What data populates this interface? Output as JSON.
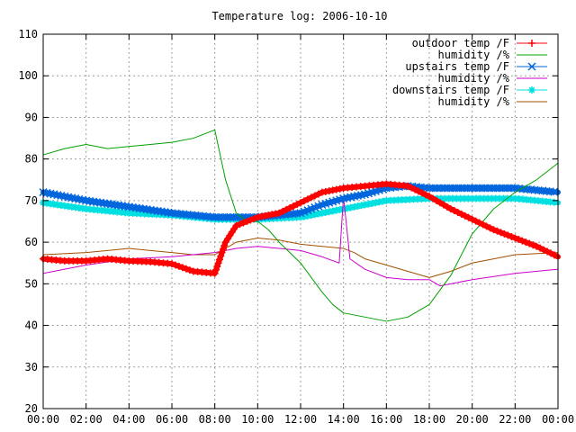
{
  "chart_data": {
    "type": "line",
    "title": "Temperature log: 2006-10-10",
    "xlabel": "",
    "ylabel": "",
    "xlim": [
      0,
      24
    ],
    "ylim": [
      20,
      110
    ],
    "x_ticks": [
      "00:00",
      "02:00",
      "04:00",
      "06:00",
      "08:00",
      "10:00",
      "12:00",
      "14:00",
      "16:00",
      "18:00",
      "20:00",
      "22:00",
      "00:00"
    ],
    "y_ticks": [
      "20",
      "30",
      "40",
      "50",
      "60",
      "70",
      "80",
      "90",
      "100",
      "110"
    ],
    "grid": true,
    "legend_position": "top-right",
    "series": [
      {
        "name": "outdoor temp /F",
        "color": "#ff0000",
        "marker": "plus",
        "x": [
          0,
          1,
          2,
          3,
          4,
          5,
          6,
          7,
          8,
          8.5,
          9,
          10,
          11,
          12,
          13,
          14,
          15,
          16,
          17,
          18,
          19,
          20,
          21,
          22,
          23,
          24
        ],
        "y": [
          56,
          55.5,
          55.5,
          56,
          55.5,
          55.3,
          54.8,
          53,
          52.5,
          60,
          64,
          66,
          67,
          69.5,
          72,
          73,
          73.5,
          74,
          73.5,
          71,
          68,
          65.5,
          63,
          61,
          59,
          56.5
        ]
      },
      {
        "name": "humidity /%",
        "color": "#00a000",
        "marker": "none",
        "x": [
          0,
          1,
          2,
          3,
          4,
          5,
          6,
          7,
          7.5,
          8,
          8.5,
          9,
          9.5,
          10,
          10.5,
          11,
          12,
          13,
          13.5,
          14,
          15,
          16,
          17,
          18,
          19,
          20,
          21,
          22,
          23,
          24
        ],
        "y": [
          81,
          82.5,
          83.5,
          82.5,
          83,
          83.5,
          84,
          85,
          86,
          87,
          75,
          67,
          65,
          65,
          63,
          60,
          55,
          48,
          45,
          43,
          42,
          41,
          42,
          45,
          52,
          62,
          68,
          72,
          75,
          79
        ]
      },
      {
        "name": "upstairs temp /F",
        "color": "#0066dd",
        "marker": "x",
        "x": [
          0,
          2,
          4,
          6,
          8,
          10,
          12,
          13,
          14,
          15,
          16,
          17,
          18,
          20,
          22,
          24
        ],
        "y": [
          72,
          70,
          68.5,
          67,
          66,
          66,
          67,
          69,
          70.5,
          71.5,
          73,
          73.5,
          73,
          73,
          73,
          72
        ]
      },
      {
        "name": "humidity /%",
        "color": "#cc00cc",
        "marker": "none",
        "x": [
          0,
          2,
          4,
          6,
          8,
          9,
          10,
          11,
          12,
          13,
          13.8,
          14,
          14.3,
          15,
          16,
          17,
          18,
          18.5,
          19,
          20,
          22,
          24
        ],
        "y": [
          52.5,
          54.5,
          56,
          56.5,
          57.5,
          58.5,
          59,
          58.5,
          58,
          56.5,
          55,
          71,
          56,
          53.5,
          51.5,
          51,
          51,
          49.5,
          50,
          51,
          52.5,
          53.5
        ]
      },
      {
        "name": "downstairs temp /F",
        "color": "#00e0e0",
        "marker": "star",
        "x": [
          0,
          2,
          4,
          6,
          8,
          10,
          12,
          14,
          16,
          18,
          20,
          22,
          24
        ],
        "y": [
          69.5,
          68,
          67,
          66.5,
          65.5,
          65.5,
          66,
          68,
          70,
          70.5,
          70.5,
          70.5,
          69.5
        ]
      },
      {
        "name": "humidity /%",
        "color": "#a05000",
        "marker": "none",
        "x": [
          0,
          2,
          3,
          4,
          5,
          6,
          7,
          8,
          9,
          10,
          11,
          12,
          13,
          14,
          14.5,
          15,
          16,
          17,
          18,
          19,
          20,
          22,
          24
        ],
        "y": [
          57,
          57.5,
          58,
          58.5,
          58,
          57.5,
          57,
          57,
          60,
          61,
          60.5,
          59.5,
          59,
          58.5,
          57.5,
          56,
          54.5,
          53,
          51.5,
          53,
          55,
          57,
          57.5
        ]
      }
    ]
  }
}
